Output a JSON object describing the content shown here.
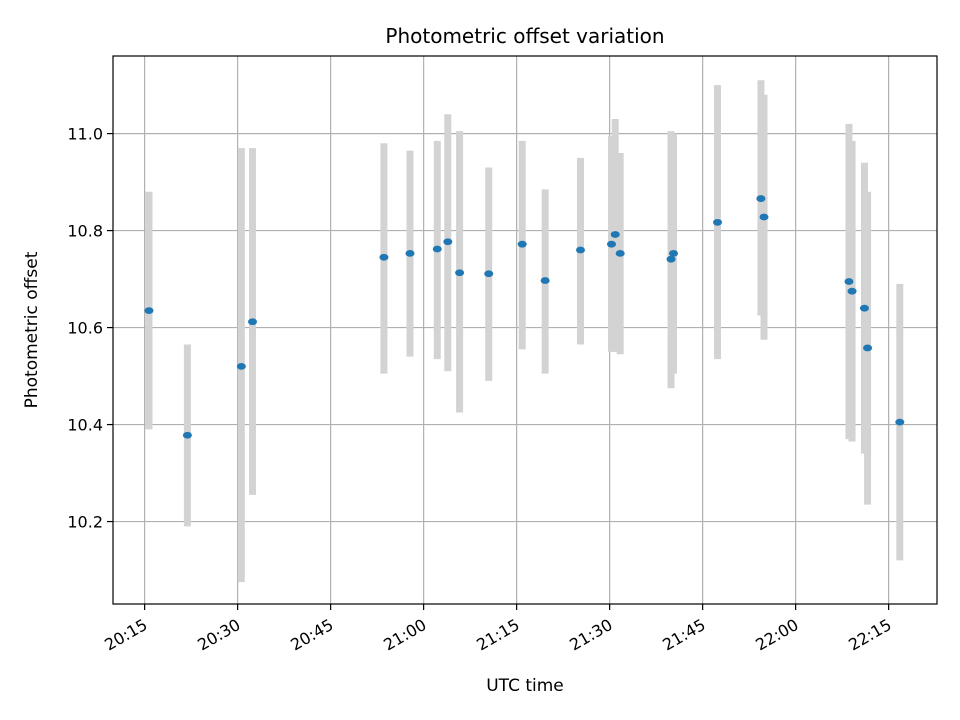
{
  "chart_data": {
    "type": "scatter",
    "title": "Photometric offset variation",
    "xlabel": "UTC time",
    "ylabel": "Photometric offset",
    "x_ticks": [
      "20:15",
      "20:30",
      "20:45",
      "21:00",
      "21:15",
      "21:30",
      "21:45",
      "22:00",
      "22:15"
    ],
    "y_ticks": [
      "10.2",
      "10.4",
      "10.6",
      "10.8",
      "11.0"
    ],
    "xlim": [
      "20:09.9",
      "22:22.8"
    ],
    "ylim": [
      10.03,
      11.16
    ],
    "grid": true,
    "colors": {
      "point": "#1f77b4",
      "errorbar": "#d3d3d3",
      "grid": "#b0b0b0"
    },
    "points": [
      {
        "t": "20:15:42",
        "y": 10.635,
        "lo": 10.39,
        "hi": 10.88
      },
      {
        "t": "20:21:54",
        "y": 10.378,
        "lo": 10.19,
        "hi": 10.565
      },
      {
        "t": "20:30:36",
        "y": 10.52,
        "lo": 10.075,
        "hi": 10.97
      },
      {
        "t": "20:32:24",
        "y": 10.612,
        "lo": 10.255,
        "hi": 10.97
      },
      {
        "t": "20:53:36",
        "y": 10.745,
        "lo": 10.505,
        "hi": 10.98
      },
      {
        "t": "20:57:48",
        "y": 10.753,
        "lo": 10.54,
        "hi": 10.965
      },
      {
        "t": "21:02:12",
        "y": 10.762,
        "lo": 10.535,
        "hi": 10.985
      },
      {
        "t": "21:03:54",
        "y": 10.777,
        "lo": 10.51,
        "hi": 11.04
      },
      {
        "t": "21:05:48",
        "y": 10.713,
        "lo": 10.425,
        "hi": 11.005
      },
      {
        "t": "21:10:30",
        "y": 10.711,
        "lo": 10.49,
        "hi": 10.93
      },
      {
        "t": "21:15:54",
        "y": 10.772,
        "lo": 10.555,
        "hi": 10.985
      },
      {
        "t": "21:19:36",
        "y": 10.697,
        "lo": 10.505,
        "hi": 10.885
      },
      {
        "t": "21:25:18",
        "y": 10.76,
        "lo": 10.565,
        "hi": 10.95
      },
      {
        "t": "21:30:18",
        "y": 10.772,
        "lo": 10.55,
        "hi": 10.995
      },
      {
        "t": "21:30:54",
        "y": 10.792,
        "lo": 10.55,
        "hi": 11.03
      },
      {
        "t": "21:31:42",
        "y": 10.753,
        "lo": 10.545,
        "hi": 10.96
      },
      {
        "t": "21:39:54",
        "y": 10.741,
        "lo": 10.475,
        "hi": 11.005
      },
      {
        "t": "21:40:18",
        "y": 10.753,
        "lo": 10.505,
        "hi": 11.0
      },
      {
        "t": "21:47:24",
        "y": 10.817,
        "lo": 10.535,
        "hi": 11.1
      },
      {
        "t": "21:54:24",
        "y": 10.866,
        "lo": 10.625,
        "hi": 11.11
      },
      {
        "t": "21:54:54",
        "y": 10.828,
        "lo": 10.575,
        "hi": 11.08
      },
      {
        "t": "22:08:36",
        "y": 10.695,
        "lo": 10.37,
        "hi": 11.02
      },
      {
        "t": "22:09:06",
        "y": 10.675,
        "lo": 10.365,
        "hi": 10.985
      },
      {
        "t": "22:11:06",
        "y": 10.64,
        "lo": 10.34,
        "hi": 10.94
      },
      {
        "t": "22:11:36",
        "y": 10.558,
        "lo": 10.235,
        "hi": 10.88
      },
      {
        "t": "22:16:48",
        "y": 10.405,
        "lo": 10.12,
        "hi": 10.69
      }
    ]
  }
}
